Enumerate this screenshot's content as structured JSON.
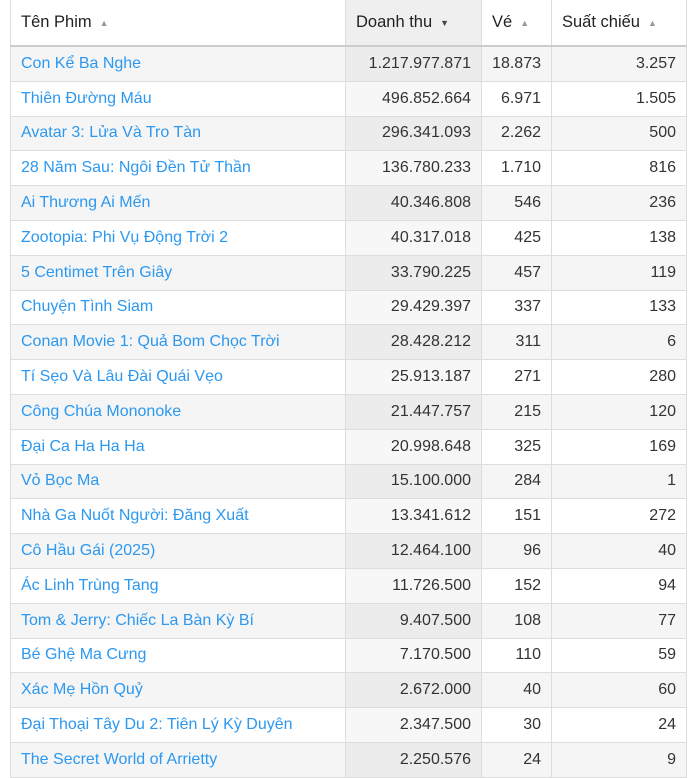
{
  "columns": [
    {
      "label": "Tên Phim",
      "sort_icon": "sort-asc-icon"
    },
    {
      "label": "Doanh thu",
      "sort_icon": "sort-desc-icon"
    },
    {
      "label": "Vé",
      "sort_icon": "sort-asc-icon"
    },
    {
      "label": "Suất chiếu",
      "sort_icon": "sort-asc-icon"
    }
  ],
  "sorted_column": "Doanh thu",
  "link_color": "#2c98f0",
  "rows": [
    [
      "Con Kể Ba Nghe",
      "1.217.977.871",
      "18.873",
      "3.257"
    ],
    [
      "Thiên Đường Máu",
      "496.852.664",
      "6.971",
      "1.505"
    ],
    [
      "Avatar 3: Lửa Và Tro Tàn",
      "296.341.093",
      "2.262",
      "500"
    ],
    [
      "28 Năm Sau: Ngôi Đền Tử Thần",
      "136.780.233",
      "1.710",
      "816"
    ],
    [
      "Ai Thương Ai Mến",
      "40.346.808",
      "546",
      "236"
    ],
    [
      "Zootopia: Phi Vụ Động Trời 2",
      "40.317.018",
      "425",
      "138"
    ],
    [
      "5 Centimet Trên Giây",
      "33.790.225",
      "457",
      "119"
    ],
    [
      "Chuyện Tình Siam",
      "29.429.397",
      "337",
      "133"
    ],
    [
      "Conan Movie 1: Quả Bom Chọc Trời",
      "28.428.212",
      "311",
      "6"
    ],
    [
      "Tí Sẹo Và Lâu Đài Quái Vẹo",
      "25.913.187",
      "271",
      "280"
    ],
    [
      "Công Chúa Mononoke",
      "21.447.757",
      "215",
      "120"
    ],
    [
      "Đại Ca Ha Ha Ha",
      "20.998.648",
      "325",
      "169"
    ],
    [
      "Vỏ Bọc Ma",
      "15.100.000",
      "284",
      "1"
    ],
    [
      "Nhà Ga Nuốt Người: Đăng Xuất",
      "13.341.612",
      "151",
      "272"
    ],
    [
      "Cô Hầu Gái (2025)",
      "12.464.100",
      "96",
      "40"
    ],
    [
      "Ác Linh Trùng Tang",
      "11.726.500",
      "152",
      "94"
    ],
    [
      "Tom & Jerry: Chiếc La Bàn Kỳ Bí",
      "9.407.500",
      "108",
      "77"
    ],
    [
      "Bé Ghệ Ma Cưng",
      "7.170.500",
      "110",
      "59"
    ],
    [
      "Xác Mẹ Hồn Quỷ",
      "2.672.000",
      "40",
      "60"
    ],
    [
      "Đại Thoại Tây Du 2: Tiên Lý Kỳ Duyên",
      "2.347.500",
      "30",
      "24"
    ],
    [
      "The Secret World of Arrietty",
      "2.250.576",
      "24",
      "9"
    ]
  ]
}
